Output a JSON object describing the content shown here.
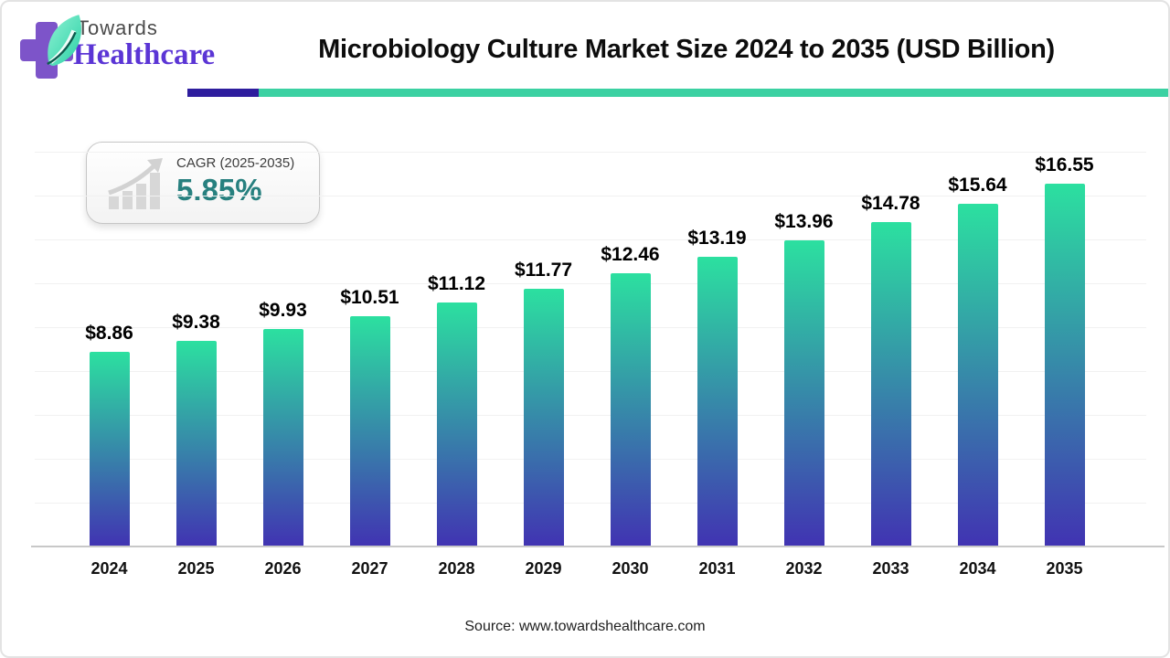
{
  "logo": {
    "towards": "Towards",
    "healthcare": "Healthcare"
  },
  "cagr": {
    "label": "CAGR (2025-2035)",
    "value": "5.85%"
  },
  "footer": {
    "source": "Source: www.towardshealthcare.com"
  },
  "colors": {
    "accent_teal": "#3bd1a2",
    "accent_indigo": "#2e1d9e",
    "bar_top": "#2ce0a0",
    "bar_bottom": "#4133b2",
    "cagr_teal": "#27807f",
    "logo_purple": "#5b35d5",
    "cross_purple": "#7d54c9",
    "title_color": "#0d0d0d"
  },
  "chart_data": {
    "type": "bar",
    "title": "Microbiology Culture Market Size 2024 to 2035 (USD Billion)",
    "categories": [
      "2024",
      "2025",
      "2026",
      "2027",
      "2028",
      "2029",
      "2030",
      "2031",
      "2032",
      "2033",
      "2034",
      "2035"
    ],
    "values": [
      8.86,
      9.38,
      9.93,
      10.51,
      11.12,
      11.77,
      12.46,
      13.19,
      13.96,
      14.78,
      15.64,
      16.55
    ],
    "labels": [
      "$8.86",
      "$9.38",
      "$9.93",
      "$10.51",
      "$11.12",
      "$11.77",
      "$12.46",
      "$13.19",
      "$13.96",
      "$14.78",
      "$15.64",
      "$16.55"
    ],
    "xlabel": "",
    "ylabel": "",
    "ylim": [
      0,
      18
    ],
    "grid": true,
    "gridline_step": 2,
    "legend_position": "none",
    "bar_gradient": [
      "#2ce0a0",
      "#4133b2"
    ]
  }
}
